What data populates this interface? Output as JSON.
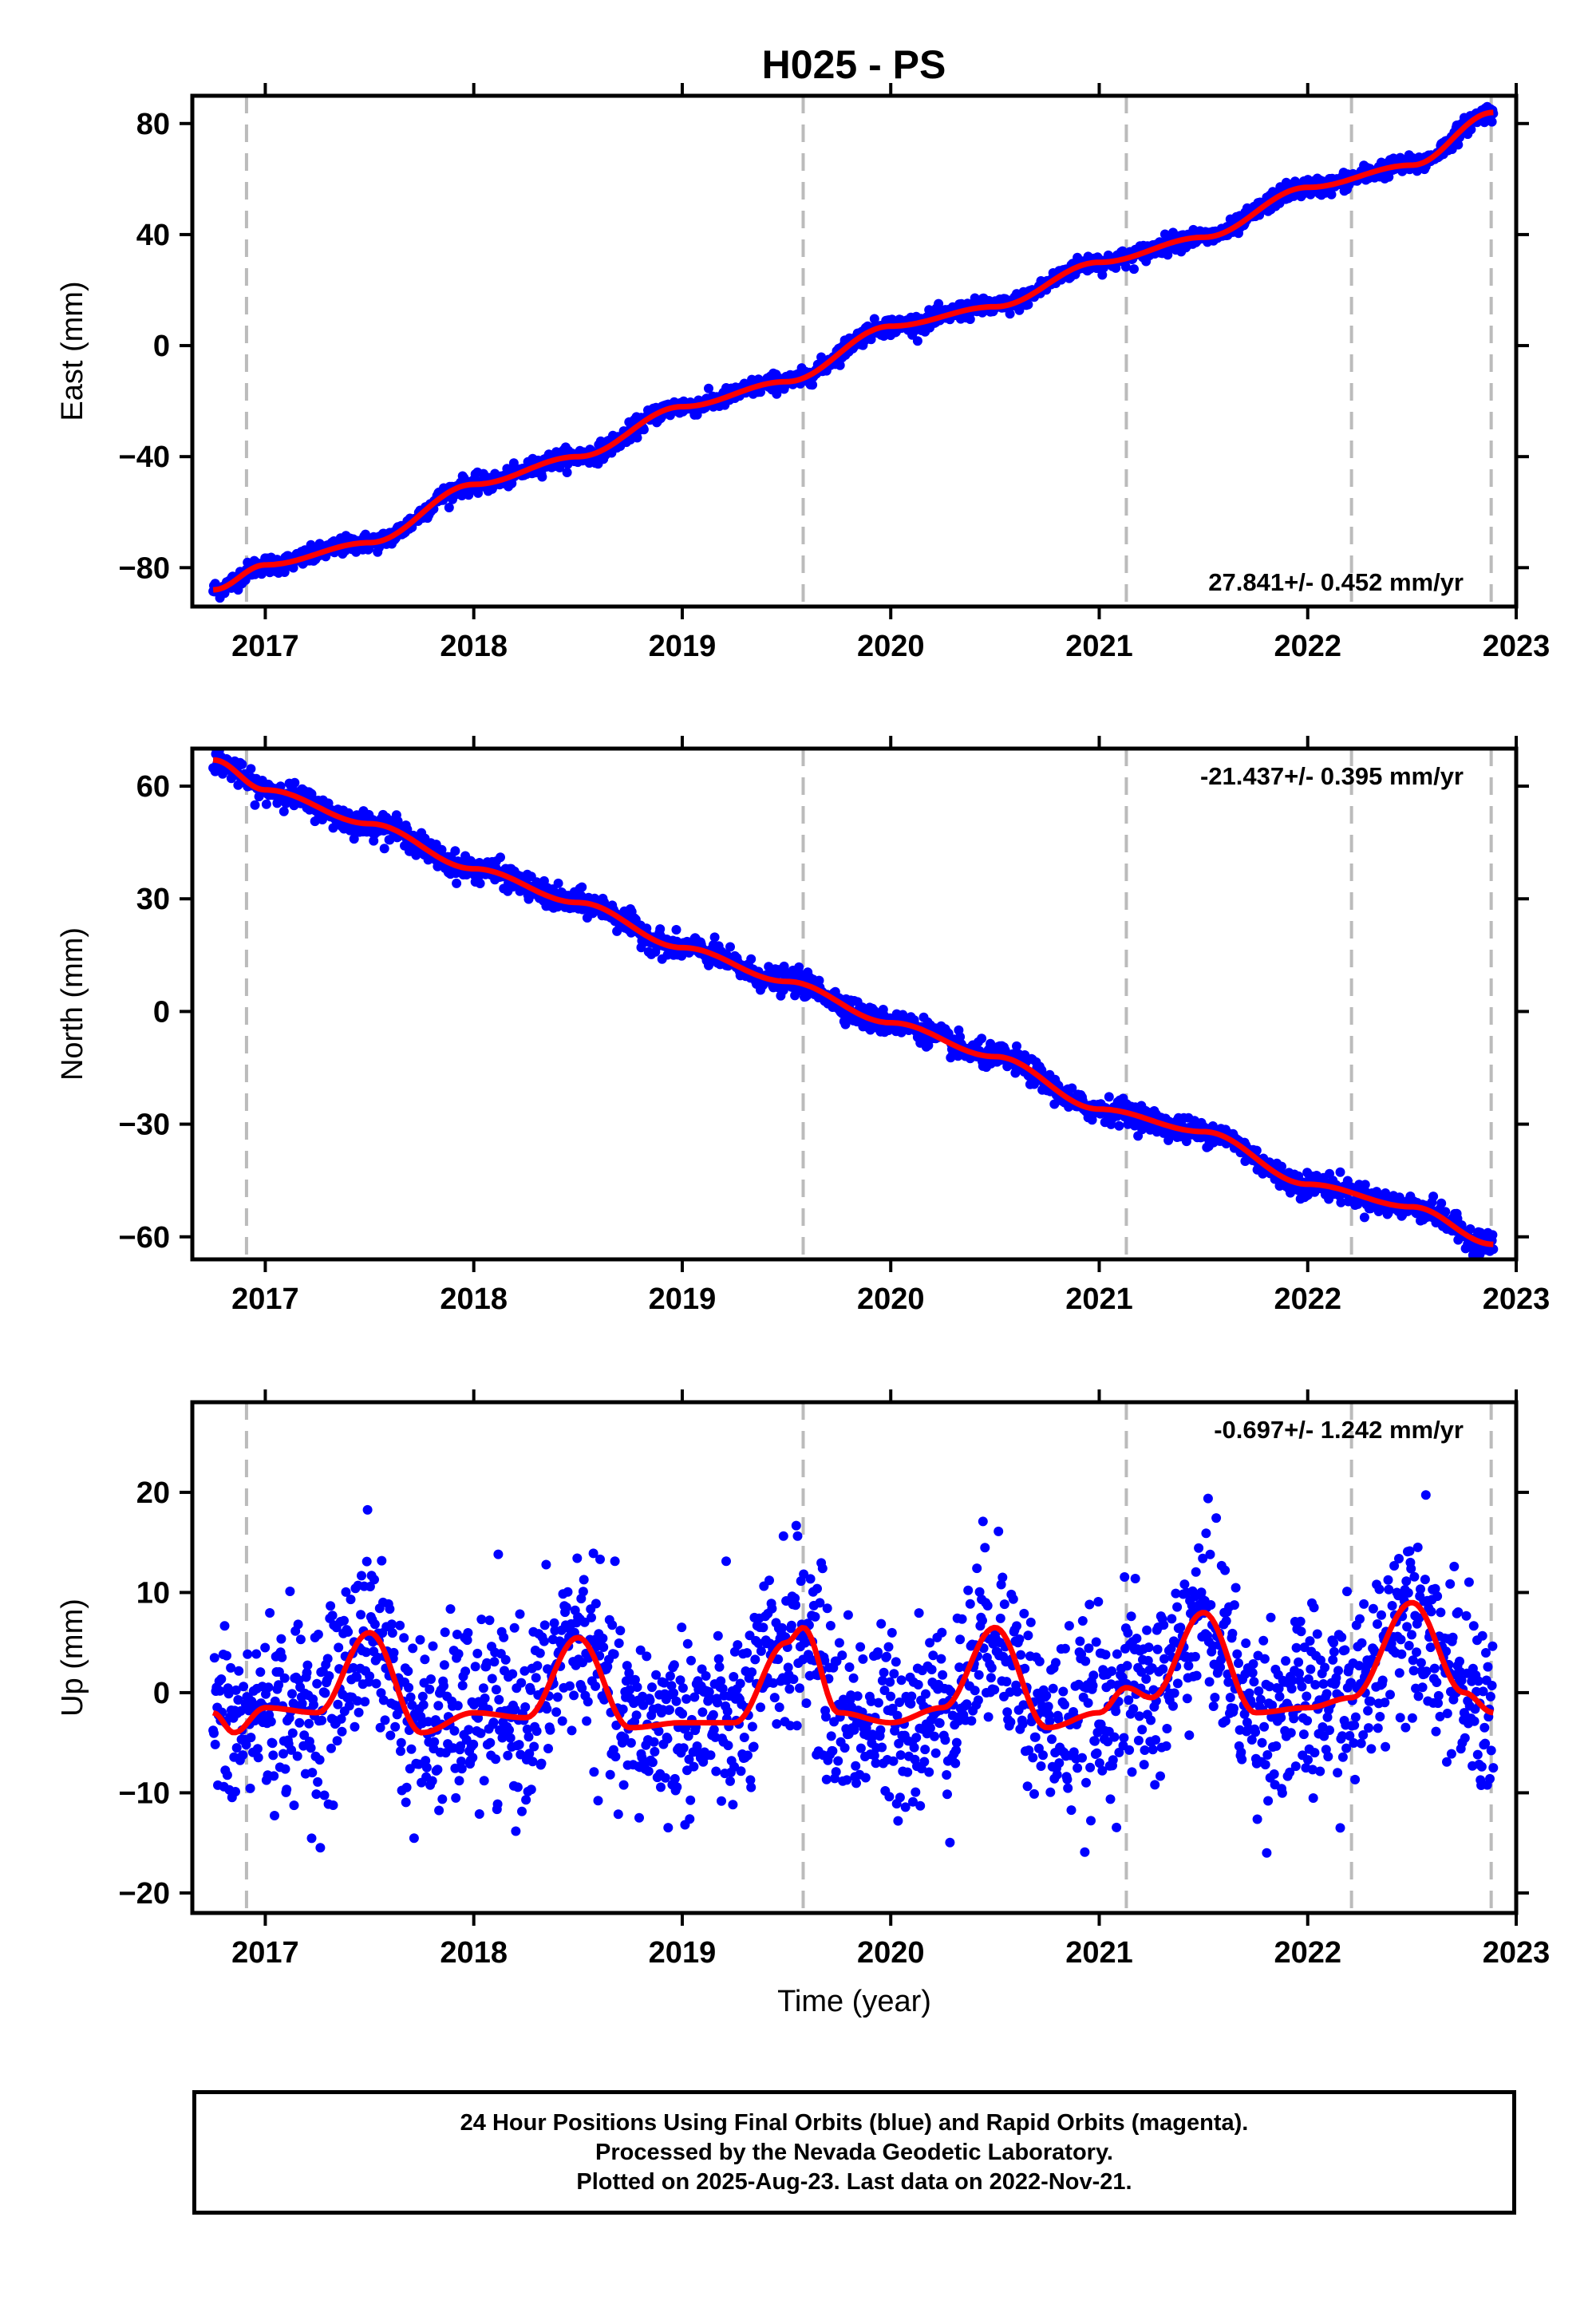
{
  "title": "H025 - PS",
  "chart_data": [
    {
      "type": "scatter",
      "ylabel": "East (mm)",
      "xlim": [
        2016.65,
        2023.0
      ],
      "ylim": [
        -94,
        90
      ],
      "yticks": [
        -80,
        -40,
        0,
        40,
        80
      ],
      "xticks": [
        2017,
        2018,
        2019,
        2020,
        2021,
        2022,
        2023
      ],
      "xtick_labels": [
        "2017",
        "2018",
        "2019",
        "2020",
        "2021",
        "2022",
        "2023"
      ],
      "rate_label": "27.841+/- 0.452 mm/yr",
      "rate_position": "bottom-right",
      "equipment_change_years": [
        2016.91,
        2019.58,
        2021.13,
        2022.21,
        2022.88
      ],
      "data_span": [
        2016.75,
        2022.89
      ],
      "series": [
        {
          "color": "#0000ff",
          "x": [
            2016.75,
            2017.0,
            2017.5,
            2018.0,
            2018.5,
            2019.0,
            2019.5,
            2020.0,
            2020.5,
            2021.0,
            2021.5,
            2022.0,
            2022.5,
            2022.89
          ],
          "values": [
            -88,
            -79,
            -71,
            -50,
            -40,
            -22,
            -13,
            7,
            14,
            30,
            39,
            57,
            65,
            84
          ]
        },
        {
          "color": "#ff0000",
          "x": [
            2016.75,
            2017.0,
            2017.5,
            2018.0,
            2018.5,
            2019.0,
            2019.5,
            2020.0,
            2020.5,
            2021.0,
            2021.5,
            2022.0,
            2022.5,
            2022.89
          ],
          "values": [
            -88,
            -79,
            -71,
            -50,
            -40,
            -22,
            -13,
            7,
            14,
            30,
            39,
            57,
            65,
            84
          ]
        }
      ]
    },
    {
      "type": "scatter",
      "ylabel": "North (mm)",
      "xlim": [
        2016.65,
        2023.0
      ],
      "ylim": [
        -66,
        70
      ],
      "yticks": [
        -60,
        -30,
        0,
        30,
        60
      ],
      "xticks": [
        2017,
        2018,
        2019,
        2020,
        2021,
        2022,
        2023
      ],
      "xtick_labels": [
        "2017",
        "2018",
        "2019",
        "2020",
        "2021",
        "2022",
        "2023"
      ],
      "rate_label": "-21.437+/- 0.395 mm/yr",
      "rate_position": "top-right",
      "equipment_change_years": [
        2016.91,
        2019.58,
        2021.13,
        2022.21,
        2022.88
      ],
      "data_span": [
        2016.75,
        2022.89
      ],
      "series": [
        {
          "color": "#0000ff",
          "x": [
            2016.75,
            2017.0,
            2017.5,
            2018.0,
            2018.5,
            2019.0,
            2019.5,
            2020.0,
            2020.5,
            2021.0,
            2021.5,
            2022.0,
            2022.5,
            2022.89
          ],
          "values": [
            67,
            59,
            50,
            38,
            29,
            17,
            8,
            -3,
            -12,
            -26,
            -32,
            -46,
            -52,
            -62
          ]
        },
        {
          "color": "#ff0000",
          "x": [
            2016.75,
            2017.0,
            2017.5,
            2018.0,
            2018.5,
            2019.0,
            2019.5,
            2020.0,
            2020.5,
            2021.0,
            2021.5,
            2022.0,
            2022.5,
            2022.89
          ],
          "values": [
            67,
            59,
            50,
            38,
            29,
            17,
            8,
            -3,
            -12,
            -26,
            -32,
            -46,
            -52,
            -62
          ]
        }
      ]
    },
    {
      "type": "scatter",
      "ylabel": "Up (mm)",
      "xlabel": "Time (year)",
      "xlim": [
        2016.65,
        2023.0
      ],
      "ylim": [
        -22,
        29
      ],
      "yticks": [
        -20,
        -10,
        0,
        10,
        20
      ],
      "xticks": [
        2017,
        2018,
        2019,
        2020,
        2021,
        2022,
        2023
      ],
      "xtick_labels": [
        "2017",
        "2018",
        "2019",
        "2020",
        "2021",
        "2022",
        "2023"
      ],
      "rate_label": "-0.697+/- 1.242 mm/yr",
      "rate_position": "top-right",
      "equipment_change_years": [
        2016.91,
        2019.58,
        2021.13,
        2022.21,
        2022.88
      ],
      "data_span": [
        2016.75,
        2022.89
      ],
      "scatter_spread_mm": 4.5,
      "series": [
        {
          "color": "#0000ff",
          "x": [
            2016.75,
            2017.0,
            2017.5,
            2018.0,
            2018.5,
            2019.0,
            2019.5,
            2020.0,
            2020.5,
            2021.0,
            2021.5,
            2022.0,
            2022.5,
            2022.89
          ],
          "values": [
            -2,
            -2,
            6,
            -3,
            5,
            -3,
            5,
            -2,
            6,
            -2,
            7,
            -1,
            8,
            -1
          ]
        },
        {
          "color": "#ff0000",
          "x": [
            2016.75,
            2016.85,
            2017.0,
            2017.25,
            2017.5,
            2017.75,
            2018.0,
            2018.25,
            2018.5,
            2018.75,
            2019.0,
            2019.25,
            2019.5,
            2019.58,
            2019.75,
            2020.0,
            2020.25,
            2020.5,
            2020.75,
            2021.0,
            2021.13,
            2021.25,
            2021.5,
            2021.75,
            2022.0,
            2022.21,
            2022.5,
            2022.75,
            2022.89
          ],
          "values": [
            -2,
            -4,
            -1.5,
            -2,
            6,
            -4,
            -2,
            -2.5,
            5.5,
            -3.5,
            -3,
            -3,
            5,
            6.5,
            -2,
            -3,
            -1.5,
            6.5,
            -3.5,
            -2,
            0.5,
            -0.5,
            8,
            -2,
            -1.5,
            -0.5,
            9,
            0,
            -2
          ]
        }
      ]
    }
  ],
  "footer": {
    "line1": "24 Hour Positions Using Final Orbits (blue) and Rapid Orbits (magenta).",
    "line2": "Processed by the Nevada Geodetic Laboratory.",
    "line3": "Plotted on 2025-Aug-23. Last data on 2022-Nov-21."
  }
}
